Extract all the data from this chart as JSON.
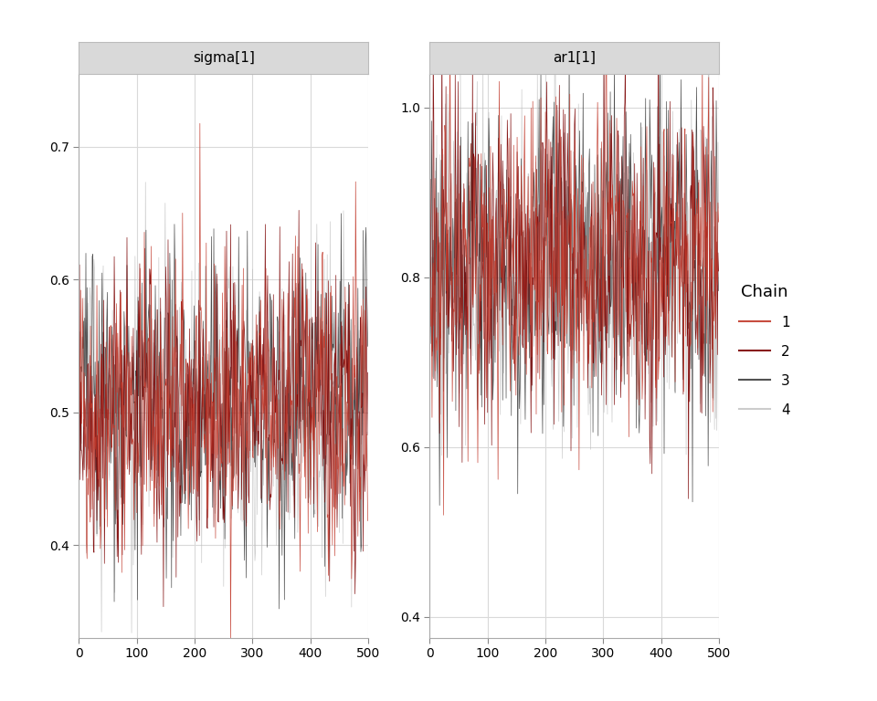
{
  "panel1_title": "sigma[1]",
  "panel2_title": "ar1[1]",
  "panel1_ylim": [
    0.33,
    0.755
  ],
  "panel2_ylim": [
    0.375,
    1.04
  ],
  "panel1_yticks": [
    0.4,
    0.5,
    0.6,
    0.7
  ],
  "panel2_yticks": [
    0.4,
    0.6,
    0.8,
    1.0
  ],
  "xlim": [
    0,
    500
  ],
  "xticks": [
    0,
    100,
    200,
    300,
    400,
    500
  ],
  "n_samples": 500,
  "chain_colors": [
    "#C1392B",
    "#7B0000",
    "#333333",
    "#BBBBBB"
  ],
  "chain_alphas": [
    0.9,
    0.9,
    0.85,
    0.75
  ],
  "chain_labels": [
    "1",
    "2",
    "3",
    "4"
  ],
  "legend_title": "Chain",
  "background_color": "#FFFFFF",
  "panel_header_color": "#D9D9D9",
  "panel_header_border": "#BBBBBB",
  "grid_color": "#D9D9D9",
  "sigma_mean": 0.503,
  "sigma_std": 0.055,
  "ar1_mean": 0.82,
  "ar1_std": 0.095,
  "random_seed": 42
}
